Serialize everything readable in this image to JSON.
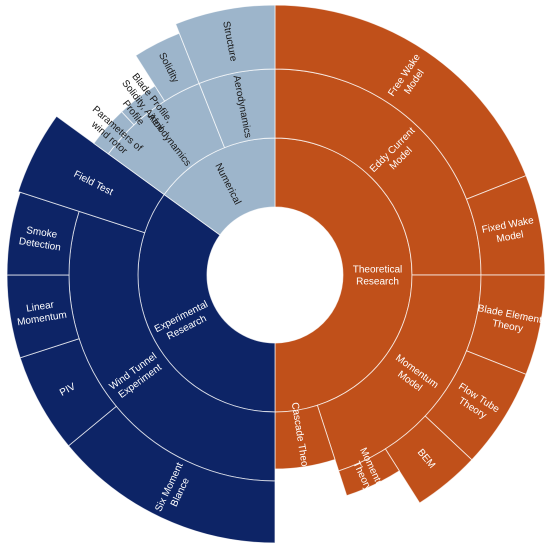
{
  "chart_data": {
    "type": "sunburst",
    "colors": {
      "Theoretical Research": "#C0501A",
      "Experimental Research": "#0D2466",
      "Numerical": "#9DB5CB"
    },
    "root": {
      "children": [
        {
          "name": "Theoretical Research",
          "lines": [
            "Theoretical",
            "Research"
          ],
          "value": 50,
          "children": [
            {
              "name": "Eddy Current Model",
              "lines": [
                "Eddy Current",
                "Model"
              ],
              "value": 25,
              "children": [
                {
                  "name": "Free Wake Model",
                  "lines": [
                    "Free Wake",
                    "Model"
                  ],
                  "value": 19
                },
                {
                  "name": "Fixed Wake Model",
                  "lines": [
                    "Fixed Wake",
                    "Model"
                  ],
                  "value": 6
                }
              ]
            },
            {
              "name": "Momentum Model",
              "lines": [
                "Momentum",
                "Model"
              ],
              "value": 20,
              "children": [
                {
                  "name": "Blade Element Theory",
                  "lines": [
                    "Blade Element",
                    "Theory"
                  ],
                  "value": 6
                },
                {
                  "name": "Flow Tube Theory",
                  "lines": [
                    "Flow Tube",
                    "Theory"
                  ],
                  "value": 6
                },
                {
                  "name": "BEM",
                  "lines": [
                    "BEM"
                  ],
                  "value": 4
                },
                {
                  "name": "Momentum Theory",
                  "lines": [
                    "Momentum",
                    "Theory"
                  ],
                  "value": 4
                }
              ]
            },
            {
              "name": "Cascade Theory",
              "lines": [
                "Cascade Theory"
              ],
              "value": 5
            }
          ]
        },
        {
          "name": "Experimental Research",
          "lines": [
            "Experimental",
            "Research"
          ],
          "value": 35,
          "children": [
            {
              "name": "Wind Tunnel Experiment",
              "lines": [
                "Wind Tunnel",
                "Experiment"
              ],
              "value": 30,
              "children": [
                {
                  "name": "Six Moment Blance",
                  "lines": [
                    "Six Moment",
                    "Blance"
                  ],
                  "value": 14
                },
                {
                  "name": "PIV",
                  "lines": [
                    "PIV"
                  ],
                  "value": 6
                },
                {
                  "name": "Linear Momentum",
                  "lines": [
                    "Linear",
                    "Momentum"
                  ],
                  "value": 5
                },
                {
                  "name": "Smoke Detection",
                  "lines": [
                    "Smoke",
                    "Detection"
                  ],
                  "value": 5
                }
              ]
            },
            {
              "name": "Field Test",
              "lines": [
                "Field Test"
              ],
              "value": 5
            }
          ]
        },
        {
          "name": "Numerical",
          "lines": [
            "Numerical"
          ],
          "value": 15,
          "children": [
            {
              "name": "Aerodynamics",
              "lines": [
                "Aerodynamics"
              ],
              "value": 9,
              "children": [
                {
                  "name": "Parameters of wind rotor",
                  "lines": [
                    "Parameters of",
                    "wind rotor"
                  ],
                  "value": 3
                },
                {
                  "name": "Blade Profile, Solidity, Airfoil Profile",
                  "lines": [
                    "Blade Profile,",
                    "Solidity, Airfoil",
                    "Profile"
                  ],
                  "value": 3
                },
                {
                  "name": "Solidity",
                  "lines": [
                    "Solidity"
                  ],
                  "value": 3
                }
              ]
            },
            {
              "name": "Aerodynamics",
              "lines": [
                "Aerodynamics"
              ],
              "value": 6,
              "children": [
                {
                  "name": "Structure",
                  "lines": [
                    "Structure"
                  ],
                  "value": 6
                }
              ]
            }
          ]
        }
      ]
    }
  }
}
